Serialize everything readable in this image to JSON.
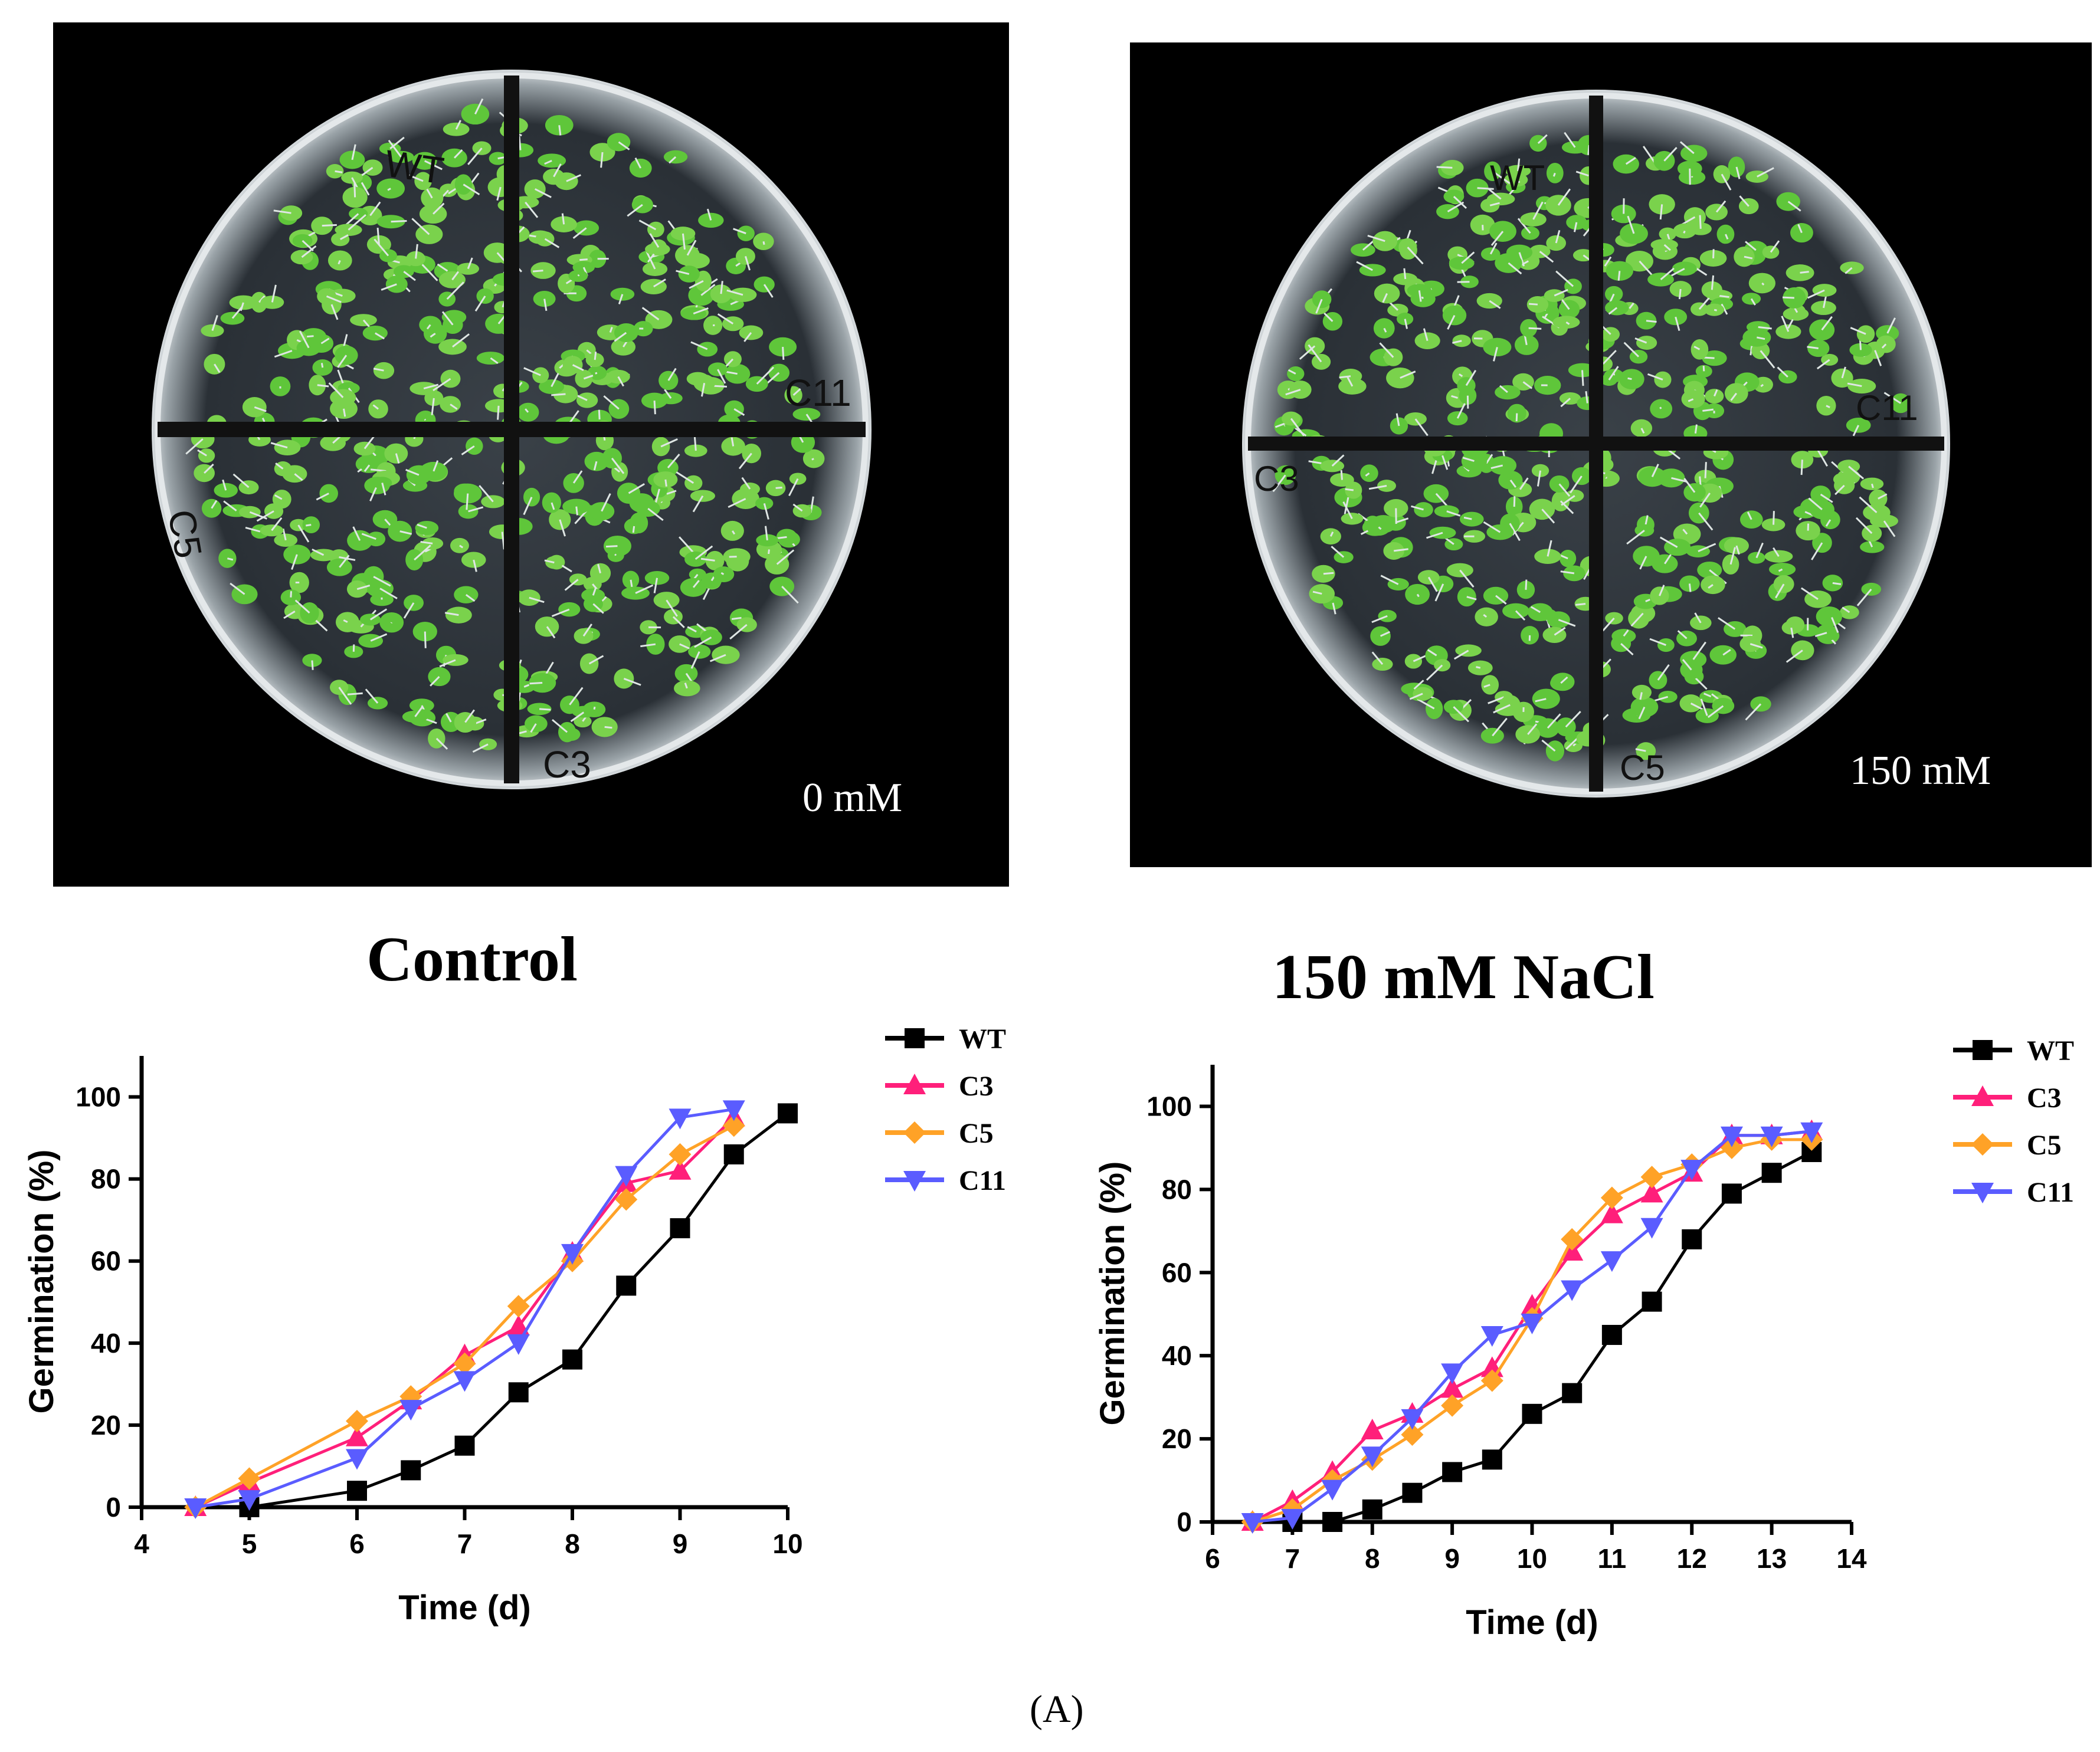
{
  "photos": [
    {
      "label": "0 mM",
      "plate_labels": [
        "WT",
        "C11",
        "C5",
        "C3"
      ]
    },
    {
      "label": "150 mM",
      "plate_labels": [
        "WT",
        "C11",
        "C3",
        "C5"
      ]
    }
  ],
  "panel_label": "(A)",
  "colors": {
    "WT": "#000000",
    "C3": "#ff1f7a",
    "C5": "#ffa227",
    "C11": "#5a5cff"
  },
  "chart_data": [
    {
      "type": "line",
      "title": "Control",
      "xlabel": "Time (d)",
      "ylabel": "Germination (%)",
      "xlim": [
        4,
        10
      ],
      "ylim": [
        0,
        110
      ],
      "xticks": [
        4,
        5,
        6,
        7,
        8,
        9,
        10
      ],
      "yticks": [
        0,
        20,
        40,
        60,
        80,
        100
      ],
      "legend_position": "top-right",
      "series": [
        {
          "name": "WT",
          "marker": "square",
          "x": [
            5,
            6,
            6.5,
            7,
            7.5,
            8,
            8.5,
            9,
            9.5,
            10
          ],
          "y": [
            0,
            4,
            9,
            15,
            28,
            36,
            54,
            68,
            86,
            96
          ]
        },
        {
          "name": "C3",
          "marker": "triangle-up",
          "x": [
            4.5,
            5,
            6,
            6.5,
            7,
            7.5,
            8,
            8.5,
            9,
            9.5
          ],
          "y": [
            0,
            6,
            17,
            26,
            37,
            44,
            62,
            79,
            82,
            95
          ]
        },
        {
          "name": "C5",
          "marker": "diamond",
          "x": [
            4.5,
            5,
            6,
            6.5,
            7,
            7.5,
            8,
            8.5,
            9,
            9.5
          ],
          "y": [
            0,
            7,
            21,
            27,
            35,
            49,
            60,
            75,
            86,
            93
          ]
        },
        {
          "name": "C11",
          "marker": "triangle-down",
          "x": [
            4.5,
            5,
            6,
            6.5,
            7,
            7.5,
            8,
            8.5,
            9,
            9.5
          ],
          "y": [
            0,
            2,
            12,
            24,
            31,
            40,
            62,
            81,
            95,
            97
          ]
        }
      ]
    },
    {
      "type": "line",
      "title": "150 mM NaCl",
      "xlabel": "Time (d)",
      "ylabel": "Germination (%)",
      "xlim": [
        6,
        14
      ],
      "ylim": [
        0,
        110
      ],
      "xticks": [
        6,
        7,
        8,
        9,
        10,
        11,
        12,
        13,
        14
      ],
      "yticks": [
        0,
        20,
        40,
        60,
        80,
        100
      ],
      "legend_position": "top-right",
      "series": [
        {
          "name": "WT",
          "marker": "square",
          "x": [
            7,
            7.5,
            8,
            8.5,
            9,
            9.5,
            10,
            10.5,
            11,
            11.5,
            12,
            12.5,
            13,
            13.5
          ],
          "y": [
            0,
            0,
            3,
            7,
            12,
            15,
            26,
            31,
            45,
            53,
            68,
            79,
            84,
            89
          ]
        },
        {
          "name": "C3",
          "marker": "triangle-up",
          "x": [
            6.5,
            7,
            7.5,
            8,
            8.5,
            9,
            9.5,
            10,
            10.5,
            11,
            11.5,
            12,
            12.5,
            13,
            13.5
          ],
          "y": [
            0,
            5,
            12,
            22,
            26,
            32,
            37,
            52,
            65,
            74,
            79,
            84,
            93,
            93,
            94
          ]
        },
        {
          "name": "C5",
          "marker": "diamond",
          "x": [
            6.5,
            7,
            7.5,
            8,
            8.5,
            9,
            9.5,
            10,
            10.5,
            11,
            11.5,
            12,
            12.5,
            13,
            13.5
          ],
          "y": [
            0,
            3,
            10,
            15,
            21,
            28,
            34,
            49,
            68,
            78,
            83,
            86,
            90,
            92,
            92
          ]
        },
        {
          "name": "C11",
          "marker": "triangle-down",
          "x": [
            6.5,
            7,
            7.5,
            8,
            8.5,
            9,
            9.5,
            10,
            10.5,
            11,
            11.5,
            12,
            12.5,
            13,
            13.5
          ],
          "y": [
            0,
            1,
            8,
            16,
            25,
            36,
            45,
            48,
            56,
            63,
            71,
            85,
            93,
            93,
            94
          ]
        }
      ]
    }
  ]
}
